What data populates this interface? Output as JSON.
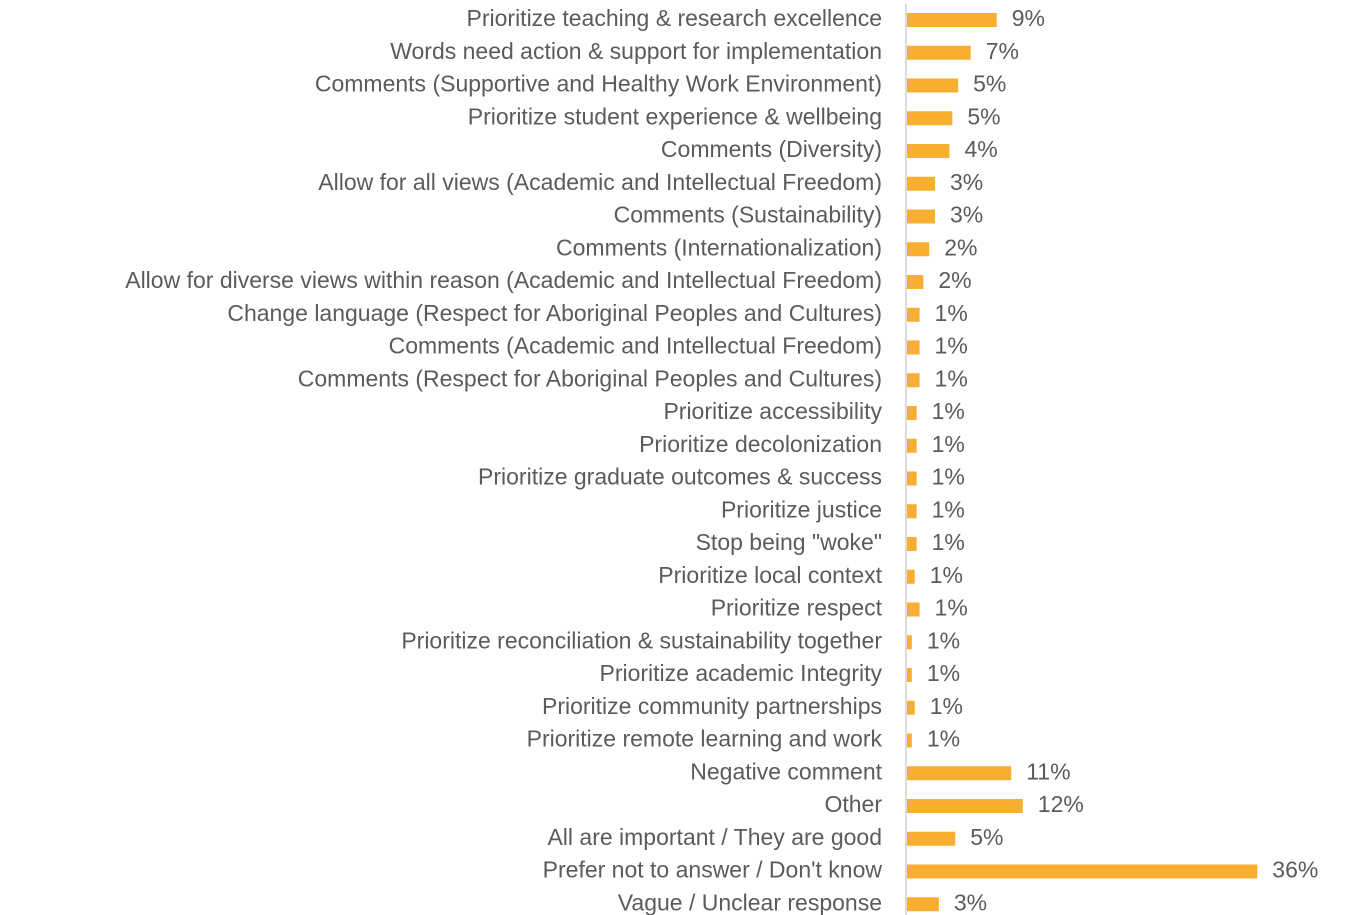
{
  "chart_data": {
    "type": "bar",
    "orientation": "horizontal",
    "categories": [
      "Prioritize teaching & research excellence",
      "Words need action & support for implementation",
      "Comments (Supportive and Healthy Work Environment)",
      "Prioritize student experience & wellbeing",
      "Comments (Diversity)",
      "Allow for all views (Academic and Intellectual Freedom)",
      "Comments (Sustainability)",
      "Comments (Internationalization)",
      "Allow for diverse views within reason (Academic and Intellectual Freedom)",
      "Change language (Respect for Aboriginal Peoples and Cultures)",
      "Comments (Academic and Intellectual Freedom)",
      "Comments (Respect for Aboriginal Peoples and Cultures)",
      "Prioritize accessibility",
      "Prioritize decolonization",
      "Prioritize graduate outcomes & success",
      "Prioritize justice",
      "Stop being \"woke\"",
      "Prioritize local context",
      "Prioritize respect",
      "Prioritize reconciliation & sustainability together",
      "Prioritize academic Integrity",
      "Prioritize community partnerships",
      "Prioritize remote learning and work",
      "Negative comment",
      "Other",
      "All are important / They are good",
      "Prefer not to answer / Don't know",
      "Vague / Unclear response"
    ],
    "values": [
      9.3,
      6.6,
      5.3,
      4.7,
      4.4,
      2.9,
      2.9,
      2.3,
      1.7,
      1.3,
      1.3,
      1.3,
      1.0,
      1.0,
      1.0,
      1.0,
      1.0,
      0.8,
      1.3,
      0.5,
      0.5,
      0.8,
      0.5,
      10.8,
      12.0,
      5.0,
      36.3,
      3.3
    ],
    "labels": [
      "9%",
      "7%",
      "5%",
      "5%",
      "4%",
      "3%",
      "3%",
      "2%",
      "2%",
      "1%",
      "1%",
      "1%",
      "1%",
      "1%",
      "1%",
      "1%",
      "1%",
      "1%",
      "1%",
      "1%",
      "1%",
      "1%",
      "1%",
      "11%",
      "12%",
      "5%",
      "36%",
      "3%"
    ],
    "xlim": [
      0,
      40
    ],
    "grid": false,
    "legend": "none",
    "bar_color": "#F8AE30",
    "text_color": "#5B5B5B",
    "axis_color": "#D0D0D0"
  }
}
